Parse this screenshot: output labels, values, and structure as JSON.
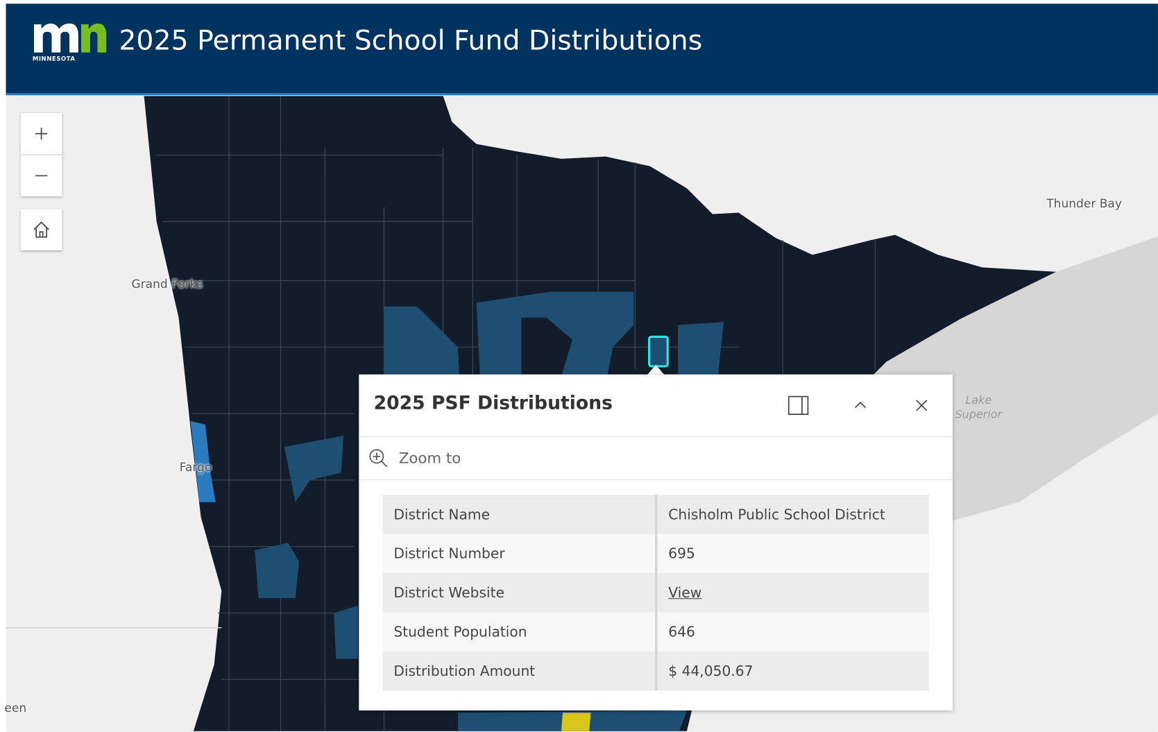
{
  "header": {
    "logo_text": "MINNESOTA",
    "title": "2025 Permanent School Fund Distributions"
  },
  "map": {
    "labels": [
      "Grand Forks",
      "Fargo",
      "Thunder Bay",
      "Lake Superior",
      "een"
    ]
  },
  "popup": {
    "title": "2025 PSF Distributions",
    "zoom": "Zoom to",
    "table": {
      "rows": [
        [
          "District Name",
          "Chisholm Public School District"
        ],
        [
          "District Number",
          "695"
        ],
        [
          "District Website",
          "View"
        ],
        [
          "Student Population",
          "646"
        ],
        [
          "Distribution Amount",
          "$ 44,050.67"
        ]
      ]
    }
  }
}
